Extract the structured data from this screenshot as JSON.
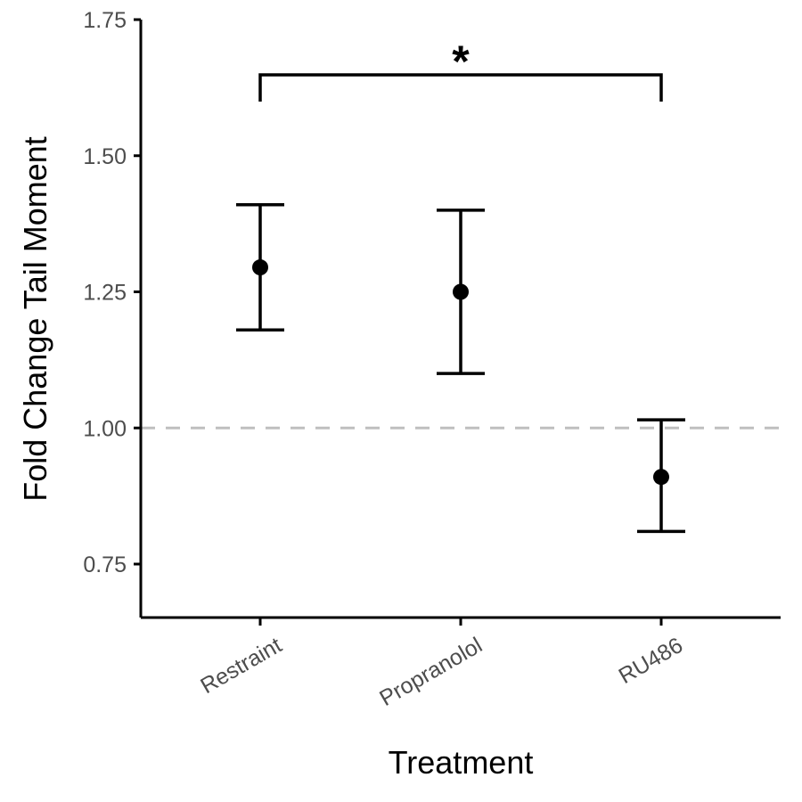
{
  "chart_data": {
    "type": "scatter",
    "xlabel": "Treatment",
    "ylabel": "Fold Change Tail Moment",
    "categories": [
      "Restraint",
      "Propranolol",
      "RU486"
    ],
    "values": [
      1.295,
      1.25,
      0.91
    ],
    "error_low": [
      1.18,
      1.1,
      0.81
    ],
    "error_high": [
      1.41,
      1.4,
      1.015
    ],
    "ylim": [
      0.65,
      1.75
    ],
    "yticks": [
      0.75,
      1.0,
      1.25,
      1.5,
      1.75
    ],
    "ytick_labels": [
      "0.75",
      "1.00",
      "1.25",
      "1.50",
      "1.75"
    ],
    "reference_line": {
      "y": 1.0,
      "style": "dashed",
      "color": "#bfbfbf"
    },
    "significance": {
      "from": "Restraint",
      "to": "RU486",
      "label": "*",
      "bracket_y": 1.65,
      "bracket_drop_to": 1.6
    },
    "grid": false,
    "point_color": "#000000"
  }
}
